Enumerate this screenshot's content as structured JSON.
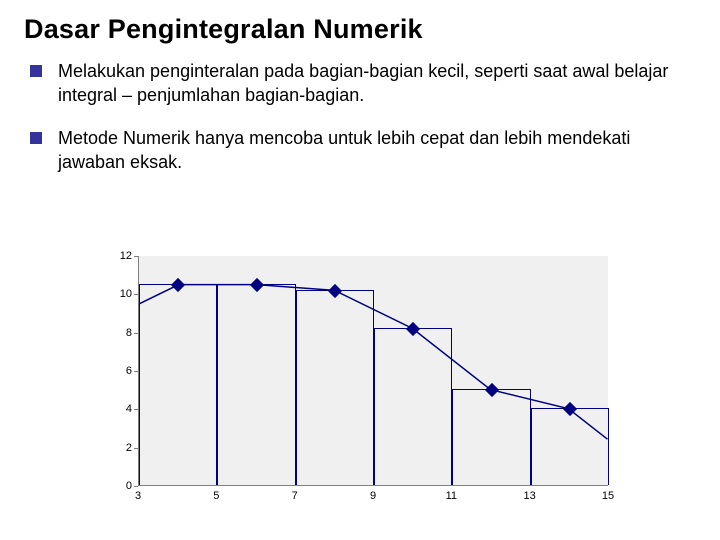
{
  "title": "Dasar Pengintegralan Numerik",
  "bullets": [
    "Melakukan penginteralan pada bagian-bagian kecil, seperti saat awal belajar integral – penjumlahan bagian-bagian.",
    "Metode Numerik hanya mencoba untuk lebih cepat dan lebih mendekati jawaban eksak."
  ],
  "chart": {
    "type": "bar-with-line-markers",
    "background_color": "#f0f0f0",
    "axis_color": "#7f7f7f",
    "bar_border_color": "#000080",
    "marker_color": "#000080",
    "line_color": "#000080",
    "marker_shape": "diamond",
    "ylim": [
      0,
      12
    ],
    "ytick_step": 2,
    "yticks": [
      0,
      2,
      4,
      6,
      8,
      10,
      12
    ],
    "x_categories": [
      3,
      5,
      7,
      9,
      11,
      13,
      15
    ],
    "bar_values": [
      10.5,
      10.5,
      10.2,
      8.2,
      5.0,
      4.0
    ],
    "curve_points": [
      {
        "x": 0,
        "y": 9.5
      },
      {
        "x": 0.5,
        "y": 10.5
      },
      {
        "x": 1.5,
        "y": 10.5
      },
      {
        "x": 2.5,
        "y": 10.2
      },
      {
        "x": 3.5,
        "y": 8.2
      },
      {
        "x": 4.5,
        "y": 5.0
      },
      {
        "x": 5.5,
        "y": 4.0
      },
      {
        "x": 6.0,
        "y": 2.4
      }
    ],
    "label_fontsize": 11,
    "label_color": "#000000"
  }
}
